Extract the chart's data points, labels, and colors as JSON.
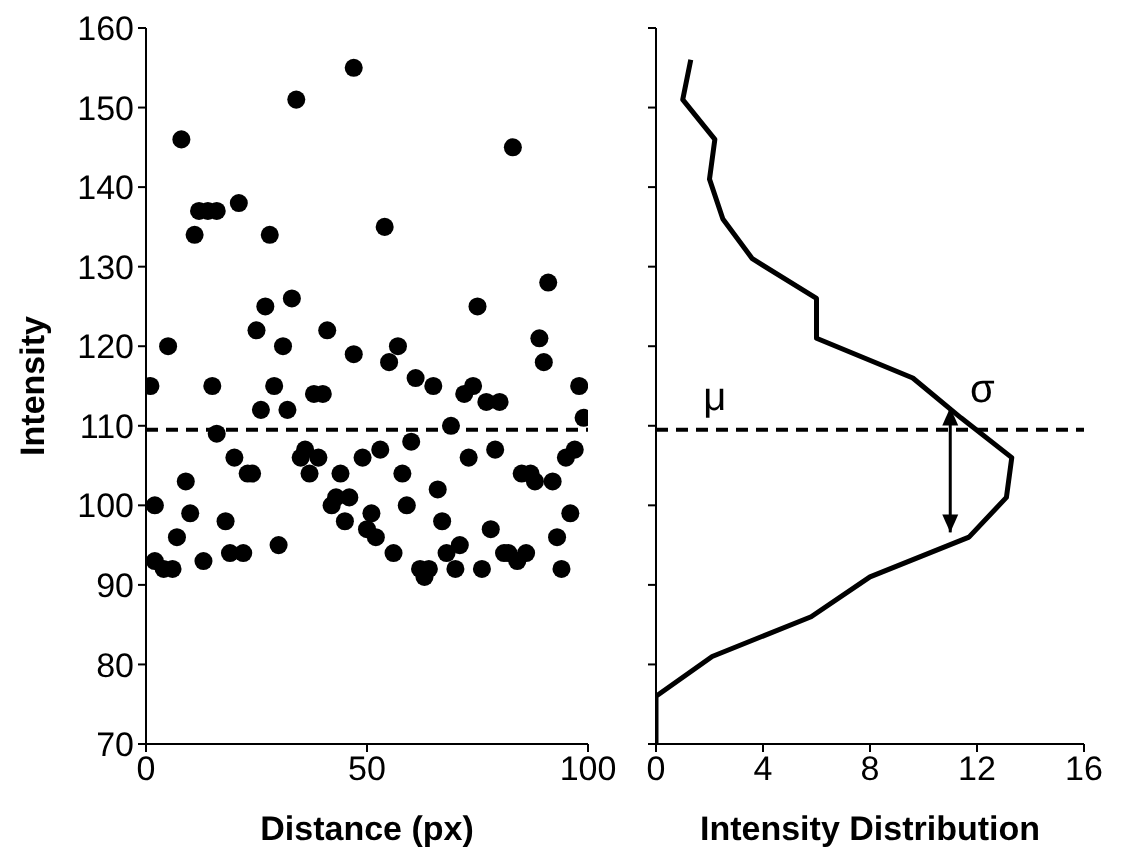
{
  "chart_data": [
    {
      "type": "scatter",
      "xlabel": "Distance (px)",
      "ylabel": "Intensity",
      "xlim": [
        0,
        100
      ],
      "xticks": [
        0,
        50,
        100
      ],
      "ylim": [
        70,
        160
      ],
      "yticks": [
        70,
        80,
        90,
        100,
        110,
        120,
        130,
        140,
        150,
        160
      ],
      "marker": "circle",
      "series": [
        {
          "color": "#000000",
          "x": [
            47,
            34,
            8,
            12,
            14,
            16,
            21,
            11,
            28,
            27,
            33,
            25,
            31,
            41,
            5,
            47,
            1,
            15,
            29,
            38,
            40,
            83,
            54,
            91,
            75,
            57,
            55,
            89,
            90,
            61,
            65,
            74,
            72,
            98,
            26,
            32,
            16,
            36,
            35,
            39,
            20,
            23,
            24,
            37,
            44,
            9,
            2,
            42,
            43,
            46,
            45,
            10,
            18,
            7,
            30,
            19,
            22,
            13,
            2,
            4,
            6,
            77,
            80,
            99,
            69,
            60,
            53,
            79,
            97,
            95,
            73,
            49,
            58,
            85,
            87,
            88,
            92,
            66,
            59,
            51,
            96,
            50,
            67,
            78,
            52,
            93,
            71,
            56,
            68,
            81,
            82,
            86,
            84,
            62,
            64,
            63,
            70,
            76,
            94
          ],
          "values": [
            155,
            151,
            146,
            137,
            137,
            137,
            138,
            134,
            134,
            125,
            126,
            122,
            120,
            122,
            120,
            119,
            115,
            115,
            115,
            114,
            114,
            145,
            135,
            128,
            125,
            120,
            118,
            121,
            118,
            116,
            115,
            115,
            114,
            115,
            112,
            112,
            109,
            107,
            106,
            106,
            106,
            104,
            104,
            104,
            104,
            103,
            100,
            100,
            101,
            101,
            98,
            99,
            98,
            96,
            95,
            94,
            94,
            93,
            93,
            92,
            92,
            113,
            113,
            111,
            110,
            108,
            107,
            107,
            107,
            106,
            106,
            106,
            104,
            104,
            104,
            103,
            103,
            102,
            100,
            99,
            99,
            97,
            98,
            97,
            96,
            96,
            95,
            94,
            94,
            94,
            94,
            94,
            93,
            92,
            92,
            91,
            92,
            92,
            92
          ]
        }
      ],
      "ref_lines": [
        {
          "axis": "y",
          "value": 109.5,
          "line_style": "dashed",
          "color": "#000000"
        }
      ]
    },
    {
      "type": "line",
      "xlabel": "Intensity Distribution",
      "xlim": [
        0,
        16
      ],
      "xticks": [
        0,
        4,
        8,
        12,
        16
      ],
      "ylim": [
        70,
        160
      ],
      "yticks": [
        70,
        80,
        90,
        100,
        110,
        120,
        130,
        140,
        150,
        160
      ],
      "tick_labels": "x",
      "marker": "none",
      "line_style": "solid",
      "series": [
        {
          "color": "#000000",
          "x": [
            1.3,
            1,
            2.2,
            2,
            2.5,
            3.6,
            6,
            6,
            9.6,
            11.4,
            13.3,
            13.1,
            11.7,
            8,
            5.8,
            2.1,
            0,
            0
          ],
          "values": [
            156,
            151,
            146,
            141,
            136,
            131,
            126,
            121,
            116,
            111,
            106,
            101,
            96,
            91,
            86,
            81,
            76,
            70
          ]
        }
      ],
      "ref_lines": [
        {
          "axis": "y",
          "value": 109.5,
          "line_style": "dashed",
          "color": "#000000"
        }
      ],
      "annotations": [
        "μ",
        "σ"
      ]
    }
  ]
}
